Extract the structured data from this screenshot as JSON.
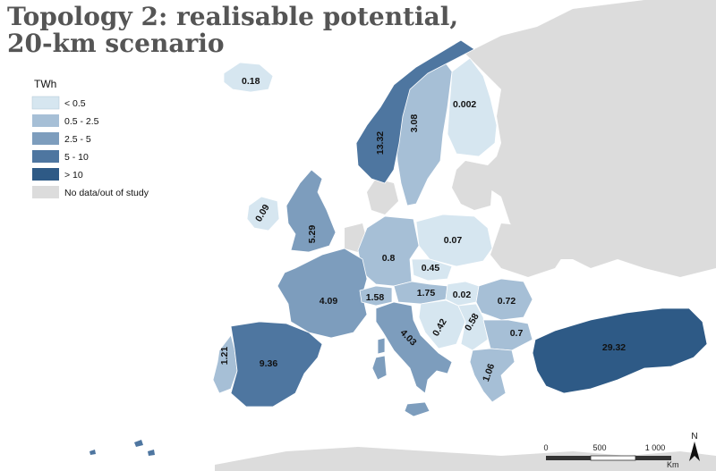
{
  "title": {
    "line1": "Topology 2: realisable potential,",
    "line2": "20-km scenario"
  },
  "legend": {
    "heading": "TWh",
    "classes": [
      {
        "label": "< 0.5",
        "color": "#d6e6f0"
      },
      {
        "label": "0.5 - 2.5",
        "color": "#a6bfd6"
      },
      {
        "label": "2.5 - 5",
        "color": "#7d9dbd"
      },
      {
        "label": "5 - 10",
        "color": "#4e76a0"
      },
      {
        "label": "> 10",
        "color": "#2e5a86"
      },
      {
        "label": "No data/out of study",
        "color": "#dcdcdc"
      }
    ]
  },
  "regions": [
    {
      "value": "0.18"
    },
    {
      "value": "0.002"
    },
    {
      "value": "3.08"
    },
    {
      "value": "13.32"
    },
    {
      "value": "0.09"
    },
    {
      "value": "5.29"
    },
    {
      "value": "0.07"
    },
    {
      "value": "0.8"
    },
    {
      "value": "0.45"
    },
    {
      "value": "4.09"
    },
    {
      "value": "1.58"
    },
    {
      "value": "1.75"
    },
    {
      "value": "0.02"
    },
    {
      "value": "0.72"
    },
    {
      "value": "0.42"
    },
    {
      "value": "0.58"
    },
    {
      "value": "0.7"
    },
    {
      "value": "4.03"
    },
    {
      "value": "1.21"
    },
    {
      "value": "9.36"
    },
    {
      "value": "1.06"
    },
    {
      "value": "29.32"
    }
  ],
  "scalebar": {
    "ticks": [
      "0",
      "500",
      "1 000"
    ],
    "unit": "Km"
  },
  "north_arrow": {
    "label": "N"
  }
}
